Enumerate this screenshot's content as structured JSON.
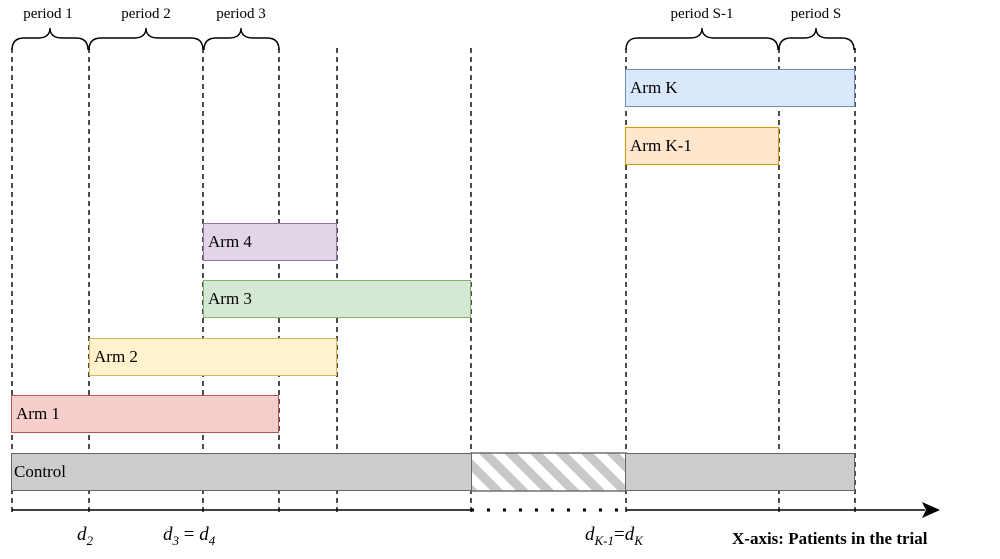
{
  "periods": [
    {
      "id": "p1",
      "label": "period 1"
    },
    {
      "id": "p2",
      "label": "period 2"
    },
    {
      "id": "p3",
      "label": "period 3"
    },
    {
      "id": "pS1",
      "label": "period S-1"
    },
    {
      "id": "pS",
      "label": "period S"
    }
  ],
  "arms": {
    "arm_k": {
      "label": "Arm K",
      "fill": "#dae8fc",
      "stroke": "#6c8ebf"
    },
    "arm_k1": {
      "label": "Arm K-1",
      "fill": "#ffe6cc",
      "stroke": "#d79b00"
    },
    "arm_4": {
      "label": "Arm 4",
      "fill": "#e1d5e7",
      "stroke": "#9673a6"
    },
    "arm_3": {
      "label": "Arm 3",
      "fill": "#d5e8d4",
      "stroke": "#82b366"
    },
    "arm_2": {
      "label": "Arm 2",
      "fill": "#fff2cc",
      "stroke": "#d6b656"
    },
    "arm_1": {
      "label": "Arm 1",
      "fill": "#f8cecc",
      "stroke": "#b85450"
    },
    "control": {
      "label": "Control",
      "fill": "#cccccc",
      "stroke": "#666666"
    }
  },
  "decision_labels": {
    "d2": {
      "base": "d",
      "sub": "2"
    },
    "d34": {
      "base1": "d",
      "sub1": "3",
      "eq": " = ",
      "base2": "d",
      "sub2": "4"
    },
    "dK": {
      "base1": "d",
      "sub1": "K-1",
      "eq": "=",
      "base2": "d",
      "sub2": "K"
    }
  },
  "x_axis_label": "X-axis: Patients in the trial"
}
